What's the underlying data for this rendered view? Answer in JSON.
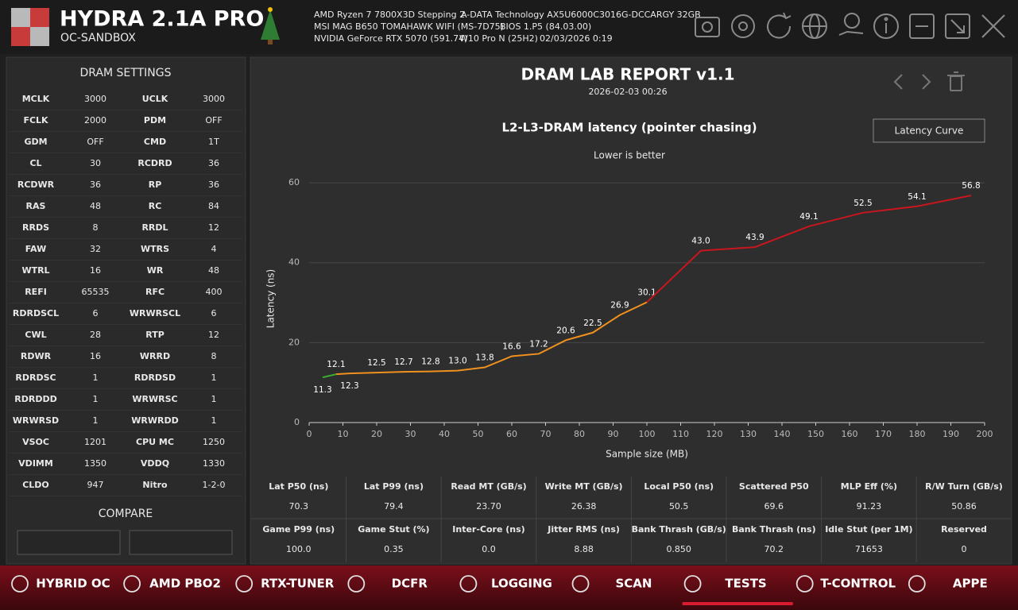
{
  "header": {
    "title": "HYDRA 2.1A PRO",
    "subtitle": "OC-SANDBOX",
    "cpu": "AMD Ryzen 7 7800X3D Stepping 2",
    "memory": "A-DATA Technology AX5U6000C3016G-DCCARGY 32GB",
    "board": "MSI MAG B650 TOMAHAWK WIFI (MS-7D75)",
    "bios": "BIOS 1.P5 (84.03.00)",
    "gpu": "NVIDIA GeForce RTX 5070 (591.74)",
    "os": "W10 Pro N (25H2)",
    "datetime": "02/03/2026 0:19"
  },
  "dram_settings": {
    "title": "DRAM SETTINGS",
    "rows": [
      [
        "MCLK",
        "3000",
        "UCLK",
        "3000"
      ],
      [
        "FCLK",
        "2000",
        "PDM",
        "OFF"
      ],
      [
        "GDM",
        "OFF",
        "CMD",
        "1T"
      ],
      [
        "CL",
        "30",
        "RCDRD",
        "36"
      ],
      [
        "RCDWR",
        "36",
        "RP",
        "36"
      ],
      [
        "RAS",
        "48",
        "RC",
        "84"
      ],
      [
        "RRDS",
        "8",
        "RRDL",
        "12"
      ],
      [
        "FAW",
        "32",
        "WTRS",
        "4"
      ],
      [
        "WTRL",
        "16",
        "WR",
        "48"
      ],
      [
        "REFI",
        "65535",
        "RFC",
        "400"
      ],
      [
        "RDRDSCL",
        "6",
        "WRWRSCL",
        "6"
      ],
      [
        "CWL",
        "28",
        "RTP",
        "12"
      ],
      [
        "RDWR",
        "16",
        "WRRD",
        "8"
      ],
      [
        "RDRDSC",
        "1",
        "RDRDSD",
        "1"
      ],
      [
        "RDRDDD",
        "1",
        "WRWRSC",
        "1"
      ],
      [
        "WRWRSD",
        "1",
        "WRWRDD",
        "1"
      ],
      [
        "VSOC",
        "1201",
        "CPU MC",
        "1250"
      ],
      [
        "VDIMM",
        "1350",
        "VDDQ",
        "1330"
      ],
      [
        "CLDO",
        "947",
        "Nitro",
        "1-2-0"
      ]
    ]
  },
  "compare": {
    "title": "COMPARE"
  },
  "report": {
    "title": "DRAM LAB REPORT v1.1",
    "date": "2026-02-03 00:26",
    "button": "Latency Curve"
  },
  "chart_data": {
    "type": "line",
    "title": "L2-L3-DRAM latency (pointer chasing)",
    "subtitle": "Lower is better",
    "x_label": "Sample size (MB)",
    "y_label": "Latency (ns)",
    "xlim": [
      0,
      200
    ],
    "xticks": [
      0,
      10,
      20,
      30,
      40,
      50,
      60,
      70,
      80,
      90,
      100,
      110,
      120,
      130,
      140,
      150,
      160,
      170,
      180,
      190,
      200
    ],
    "ylim": [
      0,
      62
    ],
    "yticks": [
      0,
      20,
      40,
      60
    ],
    "grid": true,
    "series": [
      {
        "color": "#3aaa35",
        "x": [
          4,
          8
        ],
        "values": [
          11.3,
          12.1
        ],
        "value_labels": [
          "11.3",
          "12.1"
        ]
      },
      {
        "color": "#f0901e",
        "x": [
          8,
          12,
          20,
          28,
          36,
          44,
          52,
          60,
          68,
          76,
          84,
          92,
          100
        ],
        "values": [
          12.1,
          12.3,
          12.5,
          12.7,
          12.8,
          13.0,
          13.8,
          16.6,
          17.2,
          20.6,
          22.5,
          26.9,
          30.1
        ],
        "value_labels": [
          "12.1",
          "12.3",
          "12.5",
          "12.7",
          "12.8",
          "13.0",
          "13.8",
          "16.6",
          "17.2",
          "20.6",
          "22.5",
          "26.9",
          "30.1"
        ]
      },
      {
        "color": "#c8161e",
        "x": [
          100,
          116,
          132,
          148,
          164,
          180,
          196
        ],
        "values": [
          30.1,
          43.0,
          43.9,
          49.1,
          52.5,
          54.1,
          56.8
        ],
        "value_labels": [
          "30.1",
          "43.0",
          "43.9",
          "49.1",
          "52.5",
          "54.1",
          "56.8"
        ]
      }
    ]
  },
  "stats": {
    "rows": [
      [
        [
          "Lat P50 (ns)",
          "70.3"
        ],
        [
          "Lat P99 (ns)",
          "79.4"
        ],
        [
          "Read MT (GB/s)",
          "23.70"
        ],
        [
          "Write MT (GB/s)",
          "26.38"
        ],
        [
          "Local P50 (ns)",
          "50.5"
        ],
        [
          "Scattered P50",
          "69.6"
        ],
        [
          "MLP Eff (%)",
          "91.23"
        ],
        [
          "R/W Turn (GB/s)",
          "50.86"
        ]
      ],
      [
        [
          "Game P99 (ns)",
          "100.0"
        ],
        [
          "Game Stut (%)",
          "0.35"
        ],
        [
          "Inter-Core (ns)",
          "0.0"
        ],
        [
          "Jitter RMS (ns)",
          "8.88"
        ],
        [
          "Bank Thrash (GB/s)",
          "0.850"
        ],
        [
          "Bank Thrash (ns)",
          "70.2"
        ],
        [
          "Idle Stut (per 1M)",
          "71653"
        ],
        [
          "Reserved",
          "0"
        ]
      ]
    ]
  },
  "nav": {
    "items": [
      {
        "label": "HYBRID OC"
      },
      {
        "label": "AMD PBO2"
      },
      {
        "label": "RTX-TUNER"
      },
      {
        "label": "DCFR"
      },
      {
        "label": "LOGGING"
      },
      {
        "label": "SCAN"
      },
      {
        "label": "TESTS",
        "active": true
      },
      {
        "label": "T-CONTROL"
      },
      {
        "label": "APPE"
      }
    ]
  }
}
